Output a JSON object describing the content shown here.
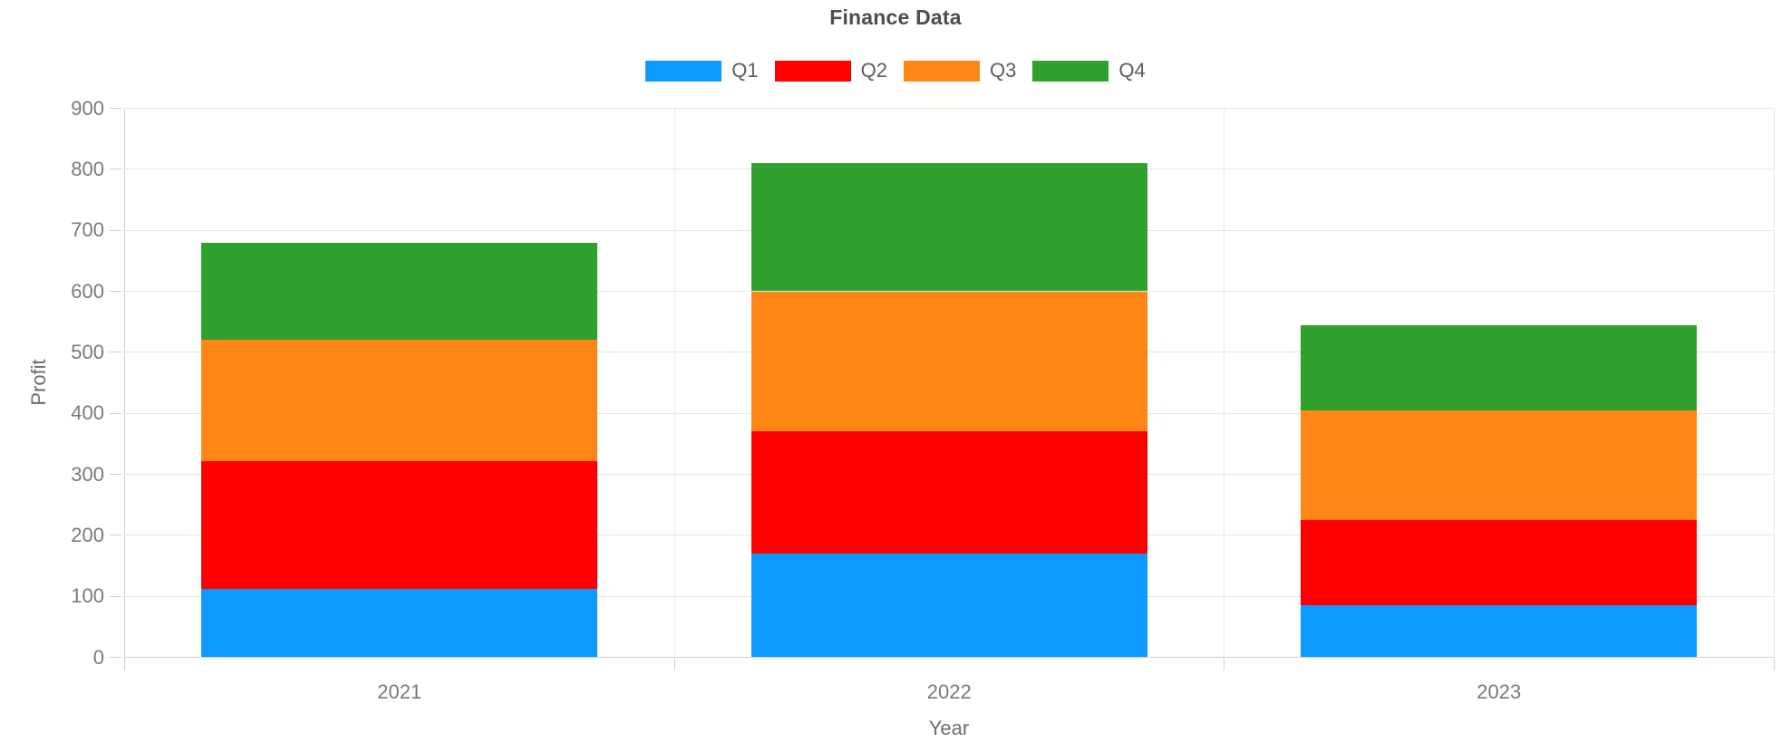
{
  "title": "Finance Data",
  "legend": {
    "items": [
      {
        "label": "Q1",
        "color": "#0d99ff"
      },
      {
        "label": "Q2",
        "color": "#ff0000"
      },
      {
        "label": "Q3",
        "color": "#ff8614"
      },
      {
        "label": "Q4",
        "color": "#2ea22c"
      }
    ]
  },
  "chart_data": {
    "type": "bar",
    "stacked": true,
    "title": "Finance Data",
    "xlabel": "Year",
    "ylabel": "Profit",
    "categories": [
      "2021",
      "2022",
      "2023"
    ],
    "series": [
      {
        "name": "Q1",
        "color": "#0d99ff",
        "values": [
          112,
          170,
          85
        ]
      },
      {
        "name": "Q2",
        "color": "#ff0000",
        "values": [
          210,
          200,
          140
        ]
      },
      {
        "name": "Q3",
        "color": "#ff8614",
        "values": [
          198,
          230,
          180
        ]
      },
      {
        "name": "Q4",
        "color": "#2ea22c",
        "values": [
          160,
          210,
          140
        ]
      }
    ],
    "stack_totals": [
      680,
      810,
      545
    ],
    "ylim": [
      0,
      900
    ],
    "ytick_step": 100,
    "yticks": [
      0,
      100,
      200,
      300,
      400,
      500,
      600,
      700,
      800,
      900
    ],
    "grid": true,
    "legend_position": "top"
  },
  "colors": {
    "grid": "#e7e7e7",
    "axis": "#cfcfcf",
    "tick_label": "#7a7a7a",
    "title": "#4d4d4d",
    "axis_title": "#6e6e6e",
    "background": "#ffffff"
  }
}
